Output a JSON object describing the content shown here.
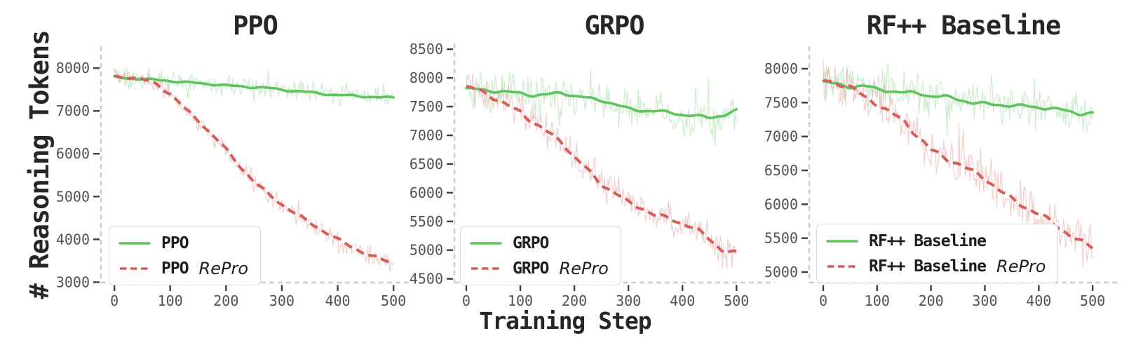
{
  "figure": {
    "ylabel": "# Reasoning Tokens",
    "xlabel": "Training Step"
  },
  "colors": {
    "green": "#5fc45f",
    "red": "#d55e5a",
    "green_raw": "rgba(95,196,95,0.32)",
    "red_raw": "rgba(213,94,90,0.30)",
    "spine": "#cccccc",
    "tick": "#3f3f3f",
    "tick_label": "#525252",
    "text": "#262626"
  },
  "chart_data": [
    {
      "type": "line",
      "title": "PPO",
      "xlabel": "Training Step",
      "ylabel": "# Reasoning Tokens",
      "x_ticks": [
        0,
        100,
        200,
        300,
        400,
        500
      ],
      "y_ticks": [
        3000,
        4000,
        5000,
        6000,
        7000,
        8000
      ],
      "xlim": [
        -24,
        530
      ],
      "ylim": [
        2990,
        8510
      ],
      "grid": false,
      "legend_position": "lower-left",
      "x": [
        0,
        25,
        50,
        75,
        100,
        125,
        150,
        175,
        200,
        225,
        250,
        275,
        300,
        325,
        350,
        375,
        400,
        425,
        450,
        475,
        500
      ],
      "series": [
        {
          "name": "PPO",
          "style": "solid",
          "color_key": "green",
          "raw_noise": 280,
          "smooth_wiggle": 28,
          "values": [
            7800,
            7770,
            7745,
            7720,
            7690,
            7665,
            7650,
            7630,
            7605,
            7580,
            7550,
            7530,
            7485,
            7460,
            7440,
            7405,
            7380,
            7360,
            7330,
            7310,
            7300
          ]
        },
        {
          "name": "PPO RePro",
          "style": "dashed",
          "color_key": "red",
          "raw_noise": 240,
          "smooth_wiggle": 45,
          "values": [
            7800,
            7790,
            7750,
            7650,
            7400,
            7060,
            6770,
            6430,
            6100,
            5720,
            5360,
            5080,
            4820,
            4580,
            4380,
            4180,
            4000,
            3840,
            3680,
            3550,
            3440
          ]
        }
      ],
      "legend": [
        {
          "label": "PPO",
          "suffix": ""
        },
        {
          "label": "PPO",
          "suffix": "RePro"
        }
      ]
    },
    {
      "type": "line",
      "title": "GRPO",
      "xlabel": "Training Step",
      "ylabel": "# Reasoning Tokens",
      "x_ticks": [
        0,
        100,
        200,
        300,
        400,
        500
      ],
      "y_ticks": [
        4500,
        5000,
        5500,
        6000,
        6500,
        7000,
        7500,
        8000,
        8500
      ],
      "xlim": [
        -22,
        571
      ],
      "ylim": [
        4435,
        8600
      ],
      "grid": false,
      "legend_position": "lower-left",
      "x": [
        0,
        25,
        50,
        75,
        100,
        125,
        150,
        175,
        200,
        225,
        250,
        275,
        300,
        325,
        350,
        375,
        400,
        425,
        450,
        475,
        500
      ],
      "series": [
        {
          "name": "GRPO",
          "style": "solid",
          "color_key": "green",
          "raw_noise": 380,
          "smooth_wiggle": 30,
          "values": [
            7810,
            7790,
            7760,
            7750,
            7740,
            7700,
            7720,
            7750,
            7680,
            7640,
            7600,
            7540,
            7470,
            7440,
            7430,
            7400,
            7350,
            7330,
            7300,
            7350,
            7440
          ]
        },
        {
          "name": "GRPO RePro",
          "style": "dashed",
          "color_key": "red",
          "raw_noise": 340,
          "smooth_wiggle": 48,
          "values": [
            7810,
            7780,
            7650,
            7520,
            7430,
            7230,
            7060,
            6900,
            6600,
            6380,
            6150,
            6000,
            5850,
            5750,
            5600,
            5550,
            5450,
            5350,
            5200,
            5000,
            4960
          ]
        }
      ],
      "legend": [
        {
          "label": "GRPO",
          "suffix": ""
        },
        {
          "label": "GRPO",
          "suffix": "RePro"
        }
      ]
    },
    {
      "type": "line",
      "title": "RF++ Baseline",
      "xlabel": "Training Step",
      "ylabel": "# Reasoning Tokens",
      "x_ticks": [
        0,
        100,
        200,
        300,
        400,
        500
      ],
      "y_ticks": [
        5000,
        5500,
        6000,
        6500,
        7000,
        7500,
        8000
      ],
      "xlim": [
        -26,
        548
      ],
      "ylim": [
        4845,
        8331
      ],
      "grid": false,
      "legend_position": "lower-left",
      "x": [
        0,
        25,
        50,
        75,
        100,
        125,
        150,
        175,
        200,
        225,
        250,
        275,
        300,
        325,
        350,
        375,
        400,
        425,
        450,
        475,
        500
      ],
      "series": [
        {
          "name": "RF++ Baseline",
          "style": "solid",
          "color_key": "green",
          "raw_noise": 350,
          "smooth_wiggle": 30,
          "values": [
            7810,
            7760,
            7720,
            7750,
            7700,
            7680,
            7660,
            7640,
            7590,
            7580,
            7540,
            7500,
            7490,
            7480,
            7460,
            7450,
            7420,
            7400,
            7380,
            7340,
            7350
          ]
        },
        {
          "name": "RF++ Baseline RePro",
          "style": "dashed",
          "color_key": "red",
          "raw_noise": 360,
          "smooth_wiggle": 50,
          "values": [
            7810,
            7780,
            7720,
            7600,
            7500,
            7360,
            7230,
            7000,
            6780,
            6680,
            6600,
            6500,
            6410,
            6230,
            6070,
            5950,
            5840,
            5720,
            5600,
            5470,
            5380
          ]
        }
      ],
      "legend": [
        {
          "label": "RF++ Baseline",
          "suffix": ""
        },
        {
          "label": "RF++ Baseline",
          "suffix": "RePro"
        }
      ]
    }
  ]
}
